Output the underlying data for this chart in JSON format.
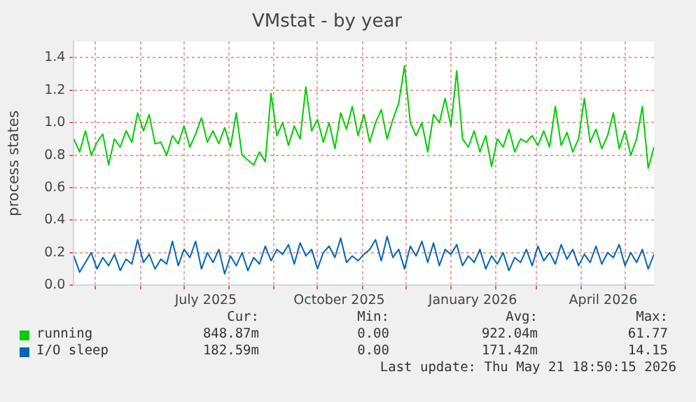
{
  "chart_data": {
    "type": "line",
    "title": "VMstat - by year",
    "ylabel": "process states",
    "x": [
      "2025-04-16",
      "2025-04-20",
      "2025-04-24",
      "2025-04-28",
      "2025-05-02",
      "2025-05-06",
      "2025-05-10",
      "2025-05-14",
      "2025-05-18",
      "2025-05-22",
      "2025-05-26",
      "2025-05-30",
      "2025-06-03",
      "2025-06-07",
      "2025-06-11",
      "2025-06-15",
      "2025-06-19",
      "2025-06-23",
      "2025-06-27",
      "2025-07-01",
      "2025-07-05",
      "2025-07-09",
      "2025-07-13",
      "2025-07-17",
      "2025-07-21",
      "2025-07-25",
      "2025-07-29",
      "2025-08-02",
      "2025-08-06",
      "2025-08-10",
      "2025-08-14",
      "2025-08-18",
      "2025-08-22",
      "2025-08-26",
      "2025-08-30",
      "2025-09-03",
      "2025-09-07",
      "2025-09-11",
      "2025-09-15",
      "2025-09-19",
      "2025-09-23",
      "2025-09-27",
      "2025-10-01",
      "2025-10-05",
      "2025-10-09",
      "2025-10-13",
      "2025-10-17",
      "2025-10-21",
      "2025-10-25",
      "2025-10-29",
      "2025-11-02",
      "2025-11-06",
      "2025-11-10",
      "2025-11-14",
      "2025-11-18",
      "2025-11-22",
      "2025-11-26",
      "2025-11-30",
      "2025-12-04",
      "2025-12-08",
      "2025-12-12",
      "2025-12-16",
      "2025-12-20",
      "2025-12-24",
      "2025-12-28",
      "2026-01-01",
      "2026-01-05",
      "2026-01-09",
      "2026-01-13",
      "2026-01-17",
      "2026-01-21",
      "2026-01-25",
      "2026-01-29",
      "2026-02-02",
      "2026-02-06",
      "2026-02-10",
      "2026-02-14",
      "2026-02-18",
      "2026-02-22",
      "2026-02-26",
      "2026-03-02",
      "2026-03-06",
      "2026-03-10",
      "2026-03-14",
      "2026-03-18",
      "2026-03-22",
      "2026-03-26",
      "2026-03-30",
      "2026-04-03",
      "2026-04-07",
      "2026-04-11",
      "2026-04-15",
      "2026-04-19",
      "2026-04-23",
      "2026-04-27",
      "2026-05-01",
      "2026-05-05",
      "2026-05-09",
      "2026-05-13",
      "2026-05-17",
      "2026-05-21"
    ],
    "series": [
      {
        "name": "running",
        "color": "#00cc00",
        "values": [
          0.9,
          0.82,
          0.95,
          0.8,
          0.88,
          0.93,
          0.74,
          0.9,
          0.85,
          0.95,
          0.88,
          1.06,
          0.95,
          1.05,
          0.87,
          0.88,
          0.8,
          0.92,
          0.87,
          0.98,
          0.85,
          0.93,
          1.03,
          0.88,
          0.95,
          0.87,
          0.97,
          0.85,
          1.06,
          0.8,
          0.77,
          0.74,
          0.82,
          0.76,
          1.18,
          0.92,
          1.0,
          0.86,
          0.98,
          0.9,
          1.22,
          0.95,
          1.02,
          0.88,
          1.0,
          0.84,
          1.06,
          0.96,
          1.1,
          0.92,
          1.05,
          0.88,
          1.0,
          1.08,
          0.9,
          1.02,
          1.12,
          1.35,
          1.0,
          0.92,
          1.0,
          0.82,
          1.05,
          1.0,
          1.15,
          0.98,
          1.32,
          0.9,
          0.85,
          0.95,
          0.82,
          0.92,
          0.73,
          0.9,
          0.85,
          0.96,
          0.82,
          0.9,
          0.88,
          0.92,
          0.86,
          0.95,
          0.85,
          1.1,
          0.86,
          0.94,
          0.82,
          0.9,
          1.15,
          0.88,
          0.96,
          0.84,
          0.92,
          1.06,
          0.84,
          0.95,
          0.8,
          0.9,
          1.1,
          0.72,
          0.85
        ]
      },
      {
        "name": "I/O sleep",
        "color": "#0066b3",
        "values": [
          0.18,
          0.08,
          0.14,
          0.2,
          0.1,
          0.17,
          0.12,
          0.19,
          0.09,
          0.16,
          0.13,
          0.28,
          0.14,
          0.19,
          0.1,
          0.16,
          0.13,
          0.27,
          0.12,
          0.22,
          0.17,
          0.27,
          0.1,
          0.2,
          0.14,
          0.22,
          0.07,
          0.18,
          0.12,
          0.2,
          0.09,
          0.17,
          0.13,
          0.24,
          0.15,
          0.22,
          0.19,
          0.25,
          0.13,
          0.26,
          0.18,
          0.22,
          0.1,
          0.2,
          0.24,
          0.17,
          0.29,
          0.14,
          0.18,
          0.15,
          0.19,
          0.22,
          0.28,
          0.15,
          0.3,
          0.17,
          0.22,
          0.1,
          0.24,
          0.18,
          0.27,
          0.14,
          0.26,
          0.12,
          0.22,
          0.19,
          0.25,
          0.12,
          0.18,
          0.14,
          0.22,
          0.1,
          0.18,
          0.13,
          0.2,
          0.09,
          0.17,
          0.14,
          0.22,
          0.12,
          0.24,
          0.15,
          0.2,
          0.13,
          0.25,
          0.16,
          0.22,
          0.12,
          0.19,
          0.14,
          0.24,
          0.13,
          0.2,
          0.17,
          0.25,
          0.12,
          0.2,
          0.14,
          0.22,
          0.1,
          0.19
        ]
      }
    ],
    "xlim": [
      "2025-04-16",
      "2026-05-21"
    ],
    "xticks": [
      {
        "value": "2025-05-01",
        "label": null
      },
      {
        "value": "2025-06-01",
        "label": null
      },
      {
        "value": "2025-07-01",
        "label": null
      },
      {
        "value": "2025-07-16",
        "label": "July 2025"
      },
      {
        "value": "2025-08-01",
        "label": null
      },
      {
        "value": "2025-09-01",
        "label": null
      },
      {
        "value": "2025-10-01",
        "label": null
      },
      {
        "value": "2025-10-16",
        "label": "October 2025"
      },
      {
        "value": "2025-11-01",
        "label": null
      },
      {
        "value": "2025-12-01",
        "label": null
      },
      {
        "value": "2026-01-01",
        "label": null
      },
      {
        "value": "2026-01-16",
        "label": "January 2026"
      },
      {
        "value": "2026-02-01",
        "label": null
      },
      {
        "value": "2026-03-01",
        "label": null
      },
      {
        "value": "2026-04-01",
        "label": null
      },
      {
        "value": "2026-04-16",
        "label": "April 2026"
      },
      {
        "value": "2026-05-01",
        "label": null
      }
    ],
    "ylim": [
      0,
      1.5
    ],
    "yticks": [
      {
        "value": 0,
        "label": "0.0"
      },
      {
        "value": 0.2,
        "label": "0.2"
      },
      {
        "value": 0.4,
        "label": "0.4"
      },
      {
        "value": 0.6,
        "label": "0.6"
      },
      {
        "value": 0.8,
        "label": "0.8"
      },
      {
        "value": 1,
        "label": "1.0"
      },
      {
        "value": 1.2,
        "label": "1.2"
      },
      {
        "value": 1.4,
        "label": "1.4"
      }
    ],
    "grid": true,
    "legend": "bottom",
    "marker": "none",
    "line_style": "solid",
    "annotations": [
      "Cur:",
      "Min:",
      "Avg:",
      "Max:",
      "848.87m",
      "0.00",
      "922.04m",
      "61.77",
      "182.59m",
      "0.00",
      "171.42m",
      "14.15",
      "Last update: Thu May 21 18:50:15 2026"
    ]
  }
}
